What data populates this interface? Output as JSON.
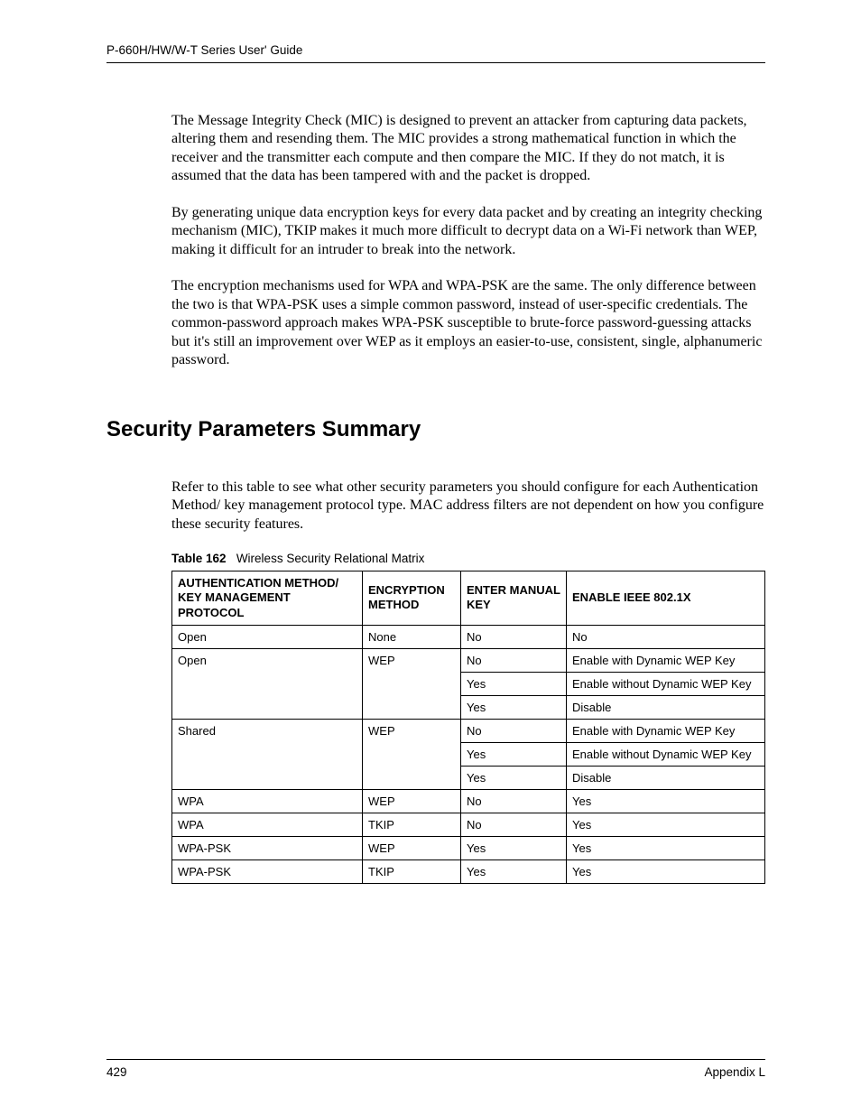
{
  "header": {
    "guide_title": "P-660H/HW/W-T Series User' Guide"
  },
  "paragraphs": {
    "p1": "The Message Integrity Check (MIC) is designed to prevent an attacker from capturing data packets, altering them and resending them. The MIC provides a strong mathematical function in which the receiver and the transmitter each compute and then compare the MIC. If they do not match, it is assumed that the data has been tampered with and the packet is dropped.",
    "p2": "By generating unique data encryption keys for every data packet and by creating an integrity checking mechanism (MIC), TKIP makes it much more difficult to decrypt data on a Wi-Fi network than WEP, making it difficult for an intruder to break into the network.",
    "p3": "The encryption mechanisms used for WPA and WPA-PSK are the same. The only difference between the two is that WPA-PSK uses a simple common password, instead of user-specific credentials. The common-password approach makes WPA-PSK susceptible to brute-force password-guessing attacks but it's still an improvement over WEP as it employs an easier-to-use, consistent, single, alphanumeric password.",
    "p4": "Refer to this table to see what other security parameters you should configure for each Authentication Method/ key management protocol type. MAC address filters are not dependent on how you configure these security features."
  },
  "section_title": "Security Parameters Summary",
  "table": {
    "caption_number": "Table 162",
    "caption_text": "Wireless Security Relational Matrix",
    "headers": {
      "auth": "AUTHENTICATION METHOD/ KEY MANAGEMENT PROTOCOL",
      "enc": "ENCRYPTION METHOD",
      "manual": "ENTER MANUAL KEY",
      "ieee": "ENABLE IEEE 802.1X"
    },
    "rows": [
      {
        "auth": "Open",
        "enc": "None",
        "manual": "No",
        "ieee": "No",
        "merge_auth": "single",
        "merge_enc": "single"
      },
      {
        "auth": "Open",
        "enc": "WEP",
        "manual": "No",
        "ieee": "Enable with Dynamic WEP Key",
        "merge_auth": "top",
        "merge_enc": "top"
      },
      {
        "auth": "",
        "enc": "",
        "manual": "Yes",
        "ieee": "Enable without Dynamic WEP Key",
        "merge_auth": "mid",
        "merge_enc": "mid"
      },
      {
        "auth": "",
        "enc": "",
        "manual": "Yes",
        "ieee": "Disable",
        "merge_auth": "bot",
        "merge_enc": "bot"
      },
      {
        "auth": "Shared",
        "enc": "WEP",
        "manual": "No",
        "ieee": "Enable with Dynamic WEP Key",
        "merge_auth": "top",
        "merge_enc": "top"
      },
      {
        "auth": "",
        "enc": "",
        "manual": "Yes",
        "ieee": "Enable without Dynamic WEP Key",
        "merge_auth": "mid",
        "merge_enc": "mid"
      },
      {
        "auth": "",
        "enc": "",
        "manual": "Yes",
        "ieee": "Disable",
        "merge_auth": "bot",
        "merge_enc": "bot"
      },
      {
        "auth": "WPA",
        "enc": "WEP",
        "manual": "No",
        "ieee": "Yes",
        "merge_auth": "single",
        "merge_enc": "single"
      },
      {
        "auth": "WPA",
        "enc": "TKIP",
        "manual": "No",
        "ieee": "Yes",
        "merge_auth": "single",
        "merge_enc": "single"
      },
      {
        "auth": "WPA-PSK",
        "enc": "WEP",
        "manual": "Yes",
        "ieee": "Yes",
        "merge_auth": "single",
        "merge_enc": "single"
      },
      {
        "auth": "WPA-PSK",
        "enc": "TKIP",
        "manual": "Yes",
        "ieee": "Yes",
        "merge_auth": "single",
        "merge_enc": "single"
      }
    ]
  },
  "footer": {
    "page_number": "429",
    "appendix": "Appendix L"
  },
  "style": {
    "font_body": "Times New Roman",
    "font_ui": "Arial",
    "text_color": "#000000",
    "border_color": "#000000",
    "background_color": "#ffffff",
    "body_font_size_pt": 12,
    "section_title_size_pt": 18,
    "table_font_size_pt": 10
  }
}
